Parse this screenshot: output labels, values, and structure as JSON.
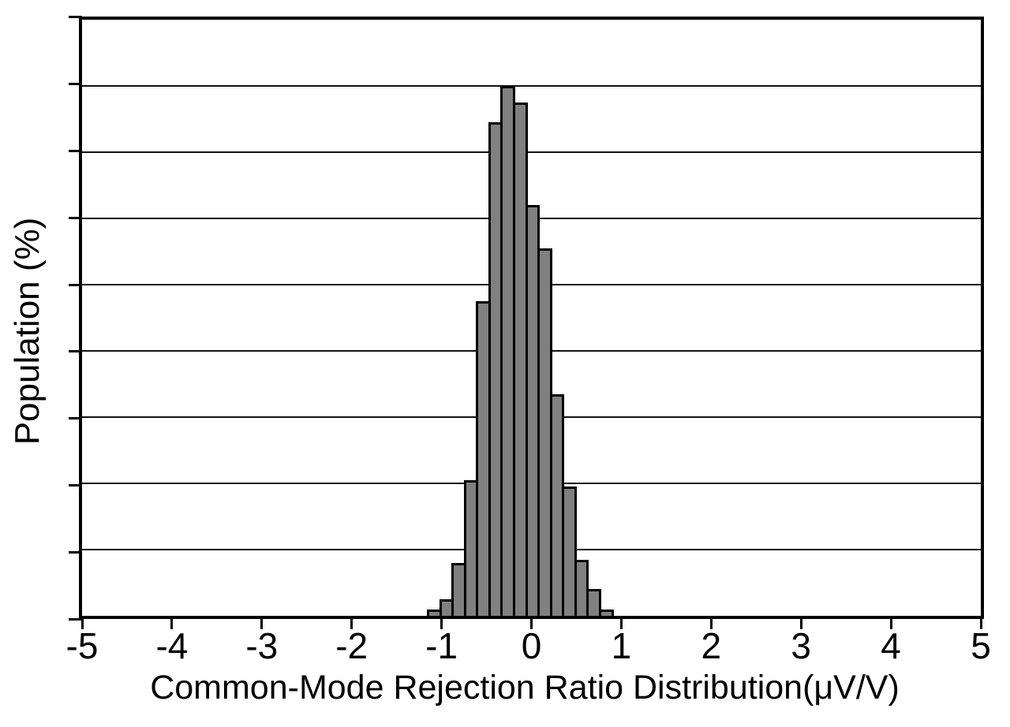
{
  "chart_data": {
    "type": "bar",
    "subtype": "histogram",
    "title": "",
    "xlabel": "Common-Mode Rejection Ratio Distribution(μV/V)",
    "ylabel": "Population (%)",
    "xlim": [
      -5,
      5
    ],
    "ylim": [
      0,
      18
    ],
    "x_ticks": [
      -5,
      -4,
      -3,
      -2,
      -1,
      0,
      1,
      2,
      3,
      4,
      5
    ],
    "x_tick_labels": [
      "-5",
      "-4",
      "-3",
      "-2",
      "-1",
      "0",
      "1",
      "2",
      "3",
      "4",
      "5"
    ],
    "y_grid_step": 2,
    "y_tick_labels_shown": false,
    "grid": "horizontal",
    "legend": "none",
    "bins": {
      "start": -1.15,
      "width": 0.1367
    },
    "bin_centers": [
      -1.082,
      -0.945,
      -0.808,
      -0.672,
      -0.535,
      -0.398,
      -0.262,
      -0.125,
      0.012,
      0.148,
      0.285,
      0.422,
      0.558,
      0.695,
      0.832
    ],
    "values": [
      0.2,
      0.5,
      1.6,
      4.1,
      9.5,
      14.9,
      16.0,
      15.5,
      12.4,
      11.1,
      6.7,
      3.9,
      1.7,
      0.8,
      0.2
    ],
    "colors": {
      "bar_fill": "#808080",
      "bar_border": "#000000",
      "axis": "#000000",
      "gridline": "#111111",
      "background": "#ffffff",
      "text": "#000000"
    }
  }
}
